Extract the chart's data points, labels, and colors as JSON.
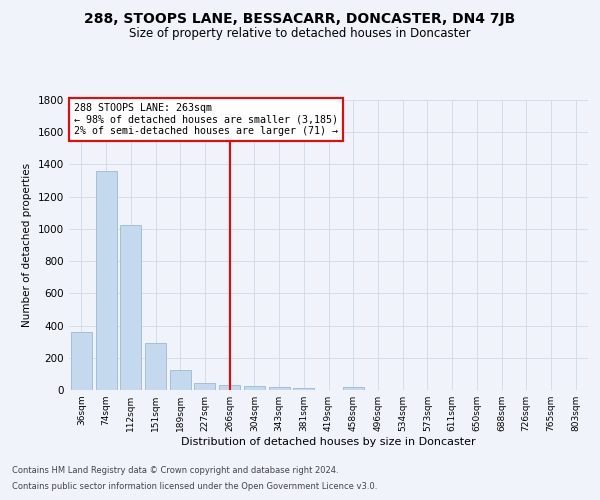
{
  "title": "288, STOOPS LANE, BESSACARR, DONCASTER, DN4 7JB",
  "subtitle": "Size of property relative to detached houses in Doncaster",
  "xlabel": "Distribution of detached houses by size in Doncaster",
  "ylabel": "Number of detached properties",
  "categories": [
    "36sqm",
    "74sqm",
    "112sqm",
    "151sqm",
    "189sqm",
    "227sqm",
    "266sqm",
    "304sqm",
    "343sqm",
    "381sqm",
    "419sqm",
    "458sqm",
    "496sqm",
    "534sqm",
    "573sqm",
    "611sqm",
    "650sqm",
    "688sqm",
    "726sqm",
    "765sqm",
    "803sqm"
  ],
  "values": [
    360,
    1360,
    1025,
    290,
    125,
    42,
    30,
    25,
    18,
    15,
    0,
    20,
    0,
    0,
    0,
    0,
    0,
    0,
    0,
    0,
    0
  ],
  "bar_color": "#c5d9ee",
  "bar_edge_color": "#9bbad4",
  "vline_x_index": 6,
  "vline_color": "red",
  "annotation_line1": "288 STOOPS LANE: 263sqm",
  "annotation_line2": "← 98% of detached houses are smaller (3,185)",
  "annotation_line3": "2% of semi-detached houses are larger (71) →",
  "annotation_box_edgecolor": "red",
  "ylim": [
    0,
    1800
  ],
  "yticks": [
    0,
    200,
    400,
    600,
    800,
    1000,
    1200,
    1400,
    1600,
    1800
  ],
  "footer_line1": "Contains HM Land Registry data © Crown copyright and database right 2024.",
  "footer_line2": "Contains public sector information licensed under the Open Government Licence v3.0.",
  "bg_color": "#f0f4fa",
  "grid_color": "#d0d8e8",
  "title_fontsize": 10,
  "subtitle_fontsize": 8.5
}
